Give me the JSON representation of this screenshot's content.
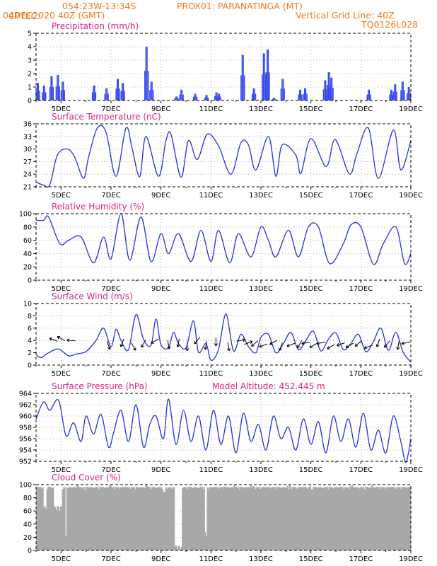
{
  "header": {
    "left_line1": "CPTEC:",
    "coords": "054:23W-13:34S",
    "location": "PROX01: PARANATINGA (MT)",
    "left_line2": "04DEC2020 40Z (GMT)",
    "grid_note": "Vertical Grid Line: 40Z",
    "code": "TQ0126L028"
  },
  "colors": {
    "header": "#f07a1e",
    "title": "#e0208c",
    "line": "#2233dd",
    "bar": "#3344ee",
    "cloud": "#a8a8a8"
  },
  "chart_data": [
    {
      "id": "precip",
      "type": "bar",
      "title": "Precipitation (mm/h)",
      "x_range": [
        4.0,
        19.0
      ],
      "ylim": [
        0,
        5
      ],
      "yticks": [
        0,
        1,
        2,
        3,
        4,
        5
      ],
      "xticks": [
        "5DEC",
        "7DEC",
        "9DEC",
        "11DEC",
        "13DEC",
        "15DEC",
        "17DEC",
        "19DEC"
      ],
      "grid": true,
      "peaks": [
        [
          4.05,
          1.3
        ],
        [
          4.3,
          1.1
        ],
        [
          4.6,
          1.8
        ],
        [
          4.85,
          1.9
        ],
        [
          5.05,
          1.4
        ],
        [
          6.3,
          1.1
        ],
        [
          6.8,
          0.9
        ],
        [
          7.25,
          1.6
        ],
        [
          7.45,
          1.3
        ],
        [
          8.4,
          4.0
        ],
        [
          8.6,
          1.4
        ],
        [
          9.6,
          0.3
        ],
        [
          9.8,
          0.8
        ],
        [
          10.35,
          0.5
        ],
        [
          10.8,
          0.4
        ],
        [
          11.2,
          0.6
        ],
        [
          11.3,
          0.5
        ],
        [
          12.25,
          3.4
        ],
        [
          12.7,
          0.9
        ],
        [
          13.1,
          3.5
        ],
        [
          13.25,
          3.8
        ],
        [
          13.5,
          0.2
        ],
        [
          13.85,
          1.6
        ],
        [
          14.55,
          0.8
        ],
        [
          14.75,
          0.9
        ],
        [
          15.55,
          1.5
        ],
        [
          15.7,
          2.1
        ],
        [
          15.8,
          1.7
        ],
        [
          17.3,
          0.8
        ],
        [
          18.2,
          0.8
        ],
        [
          18.35,
          1.2
        ],
        [
          18.65,
          1.4
        ],
        [
          18.9,
          1.0
        ]
      ]
    },
    {
      "id": "temp",
      "type": "line",
      "title": "Surface Temperature (nC)",
      "x_range": [
        4.0,
        19.0
      ],
      "ylim": [
        21,
        36
      ],
      "yticks": [
        21,
        24,
        27,
        30,
        33,
        36
      ],
      "xticks": [
        "5DEC",
        "7DEC",
        "9DEC",
        "11DEC",
        "13DEC",
        "15DEC",
        "17DEC",
        "19DEC"
      ],
      "grid": true,
      "x": [
        4.0,
        4.3,
        4.55,
        4.85,
        5.25,
        5.55,
        5.9,
        6.1,
        6.45,
        6.8,
        7.2,
        7.6,
        7.85,
        8.15,
        8.4,
        8.9,
        9.2,
        9.4,
        9.8,
        10.1,
        10.45,
        10.85,
        11.3,
        11.8,
        12.2,
        12.5,
        12.8,
        13.3,
        13.6,
        13.85,
        14.4,
        14.6,
        15.0,
        15.6,
        15.9,
        16.1,
        16.55,
        16.85,
        17.3,
        17.7,
        18.3,
        18.6,
        19.0
      ],
      "y": [
        22.1,
        21.4,
        21.5,
        28.5,
        30.0,
        28.0,
        23.0,
        28.0,
        35.0,
        34.0,
        23.5,
        35.0,
        30.0,
        23.4,
        33.0,
        23.5,
        32.0,
        33.5,
        23.3,
        32.0,
        27.5,
        33.5,
        30.8,
        24.0,
        31.5,
        31.0,
        25.0,
        33.0,
        23.5,
        31.0,
        28.5,
        24.2,
        32.5,
        25.8,
        31.8,
        31.0,
        24.0,
        29.0,
        35.0,
        23.0,
        34.5,
        25.0,
        32.0
      ]
    },
    {
      "id": "rh",
      "type": "line",
      "title": "Relative Humidity (%)",
      "x_range": [
        4.0,
        19.0
      ],
      "ylim": [
        0,
        100
      ],
      "yticks": [
        0,
        20,
        40,
        60,
        80,
        100
      ],
      "xticks": [
        "5DEC",
        "7DEC",
        "9DEC",
        "11DEC",
        "13DEC",
        "15DEC",
        "17DEC",
        "19DEC"
      ],
      "grid": true,
      "x": [
        4.0,
        4.3,
        4.5,
        4.95,
        5.3,
        5.8,
        6.3,
        6.7,
        7.0,
        7.4,
        7.75,
        8.2,
        8.6,
        9.0,
        9.3,
        9.7,
        10.2,
        10.6,
        11.0,
        11.3,
        11.75,
        12.1,
        12.6,
        13.0,
        13.3,
        13.6,
        14.1,
        14.5,
        14.9,
        15.3,
        15.75,
        16.3,
        16.6,
        17.0,
        17.5,
        17.9,
        18.4,
        18.75,
        19.0
      ],
      "y": [
        90,
        90,
        95,
        55,
        60,
        65,
        26,
        65,
        32,
        100,
        30,
        95,
        28,
        70,
        40,
        70,
        28,
        75,
        28,
        75,
        26,
        70,
        35,
        80,
        60,
        35,
        75,
        35,
        80,
        80,
        25,
        55,
        83,
        80,
        24,
        55,
        80,
        25,
        40
      ]
    },
    {
      "id": "wind",
      "type": "line",
      "title": "Surface Wind (m/s)",
      "x_range": [
        4.0,
        19.0
      ],
      "ylim": [
        0,
        10
      ],
      "yticks": [
        0,
        2,
        4,
        6,
        8,
        10
      ],
      "xticks": [
        "5DEC",
        "7DEC",
        "9DEC",
        "11DEC",
        "13DEC",
        "15DEC",
        "17DEC",
        "19DEC"
      ],
      "grid": true,
      "x": [
        4.0,
        4.2,
        4.5,
        4.9,
        5.3,
        5.6,
        6.0,
        6.4,
        6.7,
        7.0,
        7.2,
        7.4,
        7.7,
        8.0,
        8.3,
        8.6,
        8.8,
        9.0,
        9.3,
        9.5,
        9.7,
        10.0,
        10.3,
        10.5,
        10.8,
        11.0,
        11.3,
        11.6,
        11.9,
        12.2,
        12.5,
        12.8,
        13.0,
        13.3,
        13.6,
        13.9,
        14.2,
        14.5,
        14.8,
        15.1,
        15.4,
        15.7,
        16.0,
        16.3,
        16.6,
        16.9,
        17.2,
        17.5,
        17.8,
        18.1,
        18.4,
        18.7,
        19.0
      ],
      "y": [
        1.7,
        1.2,
        2.0,
        2.6,
        1.5,
        1.8,
        2.2,
        4.0,
        6.0,
        3.0,
        5.8,
        4.0,
        2.5,
        8.2,
        4.2,
        3.2,
        7.5,
        3.3,
        2.8,
        5.3,
        3.5,
        2.8,
        7.2,
        2.1,
        3.5,
        0.8,
        2.5,
        8.3,
        2.3,
        5.0,
        3.0,
        2.0,
        4.5,
        5.0,
        2.0,
        3.5,
        5.3,
        2.5,
        4.0,
        5.5,
        2.3,
        4.2,
        5.2,
        2.5,
        3.5,
        5.0,
        2.2,
        3.8,
        6.0,
        2.4,
        5.3,
        2.0,
        0.5
      ]
    },
    {
      "id": "pressure",
      "type": "line",
      "title": "Surface Pressure (hPa)",
      "x_range": [
        4.0,
        19.0
      ],
      "ylim": [
        952,
        964
      ],
      "yticks": [
        952,
        954,
        956,
        958,
        960,
        962,
        964
      ],
      "xticks": [
        "5DEC",
        "7DEC",
        "9DEC",
        "11DEC",
        "13DEC",
        "15DEC",
        "17DEC",
        "19DEC"
      ],
      "grid": true,
      "annotation": "Model Altitude: 452.445 m",
      "x": [
        4.0,
        4.3,
        4.55,
        4.9,
        5.2,
        5.5,
        5.8,
        6.0,
        6.3,
        6.6,
        6.9,
        7.1,
        7.4,
        7.7,
        8.0,
        8.3,
        8.55,
        8.8,
        9.1,
        9.3,
        9.6,
        9.9,
        10.2,
        10.5,
        10.8,
        11.1,
        11.4,
        11.7,
        12.0,
        12.3,
        12.6,
        12.9,
        13.2,
        13.5,
        13.8,
        14.1,
        14.4,
        14.7,
        15.0,
        15.3,
        15.6,
        15.9,
        16.2,
        16.5,
        16.8,
        17.1,
        17.4,
        17.7,
        18.0,
        18.3,
        18.6,
        18.8,
        19.0
      ],
      "y": [
        959.5,
        962.5,
        961.0,
        962.8,
        956.5,
        958.8,
        955.5,
        960.0,
        956.8,
        960.3,
        954.5,
        957.0,
        961.0,
        955.5,
        962.0,
        954.5,
        958.5,
        960.0,
        956.0,
        963.0,
        955.0,
        961.0,
        955.5,
        960.0,
        954.0,
        961.0,
        955.0,
        960.0,
        953.5,
        960.5,
        955.5,
        958.5,
        954.0,
        960.0,
        956.0,
        958.0,
        954.0,
        959.5,
        955.0,
        959.0,
        953.5,
        960.0,
        955.5,
        959.5,
        954.5,
        960.5,
        954.0,
        957.5,
        953.5,
        960.0,
        955.5,
        951.8,
        956.0
      ]
    },
    {
      "id": "cloud",
      "type": "bar",
      "title": "Cloud Cover (%)",
      "x_range": [
        4.0,
        19.0
      ],
      "ylim": [
        0,
        100
      ],
      "yticks": [
        0,
        20,
        40,
        60,
        80,
        100
      ],
      "xticks": [
        "5DEC",
        "7DEC",
        "9DEC",
        "11DEC",
        "13DEC",
        "15DEC",
        "17DEC",
        "19DEC"
      ],
      "grid": true,
      "dips": [
        [
          4.3,
          4.4,
          60
        ],
        [
          4.7,
          5.05,
          60
        ],
        [
          5.15,
          5.2,
          20
        ],
        [
          5.6,
          5.7,
          92
        ],
        [
          5.95,
          6.0,
          90
        ],
        [
          6.9,
          7.0,
          93
        ],
        [
          8.35,
          8.45,
          92
        ],
        [
          9.05,
          9.15,
          85
        ],
        [
          9.55,
          9.85,
          0
        ],
        [
          10.45,
          10.55,
          88
        ],
        [
          10.75,
          10.85,
          20
        ],
        [
          11.5,
          11.6,
          90
        ],
        [
          11.9,
          12.0,
          92
        ],
        [
          12.6,
          12.7,
          93
        ],
        [
          14.05,
          14.15,
          92
        ],
        [
          14.95,
          15.05,
          92
        ],
        [
          16.55,
          16.65,
          93
        ],
        [
          17.4,
          17.5,
          92
        ]
      ]
    }
  ]
}
